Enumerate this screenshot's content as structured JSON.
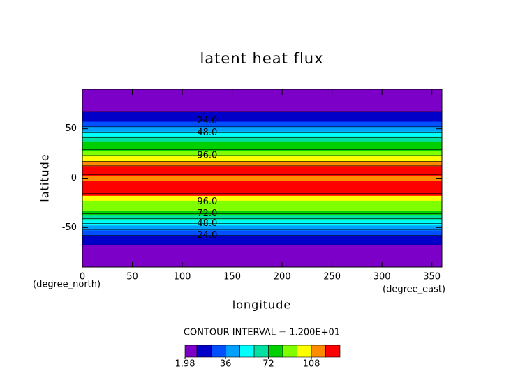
{
  "chart_data": {
    "type": "contour",
    "title": "latent heat flux",
    "x_label": "longitude",
    "y_label": "latitude",
    "x_units": "(degree_east)",
    "y_units": "(degree_north)",
    "xlim": [
      0,
      360
    ],
    "ylim": [
      -90,
      90
    ],
    "xticks": [
      0,
      50,
      100,
      150,
      200,
      250,
      300,
      350
    ],
    "yticks": [
      -50,
      0,
      50
    ],
    "y": [
      -90,
      -85,
      -80,
      -75,
      -70,
      -65,
      -60,
      -55,
      -50,
      -45,
      -40,
      -35,
      -30,
      -25,
      -20,
      -15,
      -10,
      -5,
      0,
      5,
      10,
      15,
      20,
      25,
      30,
      35,
      40,
      45,
      50,
      55,
      60,
      65,
      70,
      75,
      80,
      85,
      90
    ],
    "values": [
      5,
      5,
      6,
      8,
      10,
      14,
      20,
      30,
      40,
      50,
      62,
      74,
      84,
      94,
      104,
      122,
      126,
      124,
      115,
      122,
      128,
      112,
      102,
      92,
      82,
      72,
      62,
      50,
      40,
      30,
      20,
      14,
      10,
      8,
      6,
      5,
      5
    ],
    "levels": [
      12,
      24,
      36,
      48,
      60,
      72,
      84,
      96,
      108,
      120
    ],
    "colors": [
      "#7d00c8",
      "#0000c8",
      "#0050ff",
      "#00a0ff",
      "#00ffff",
      "#00e0a0",
      "#00d000",
      "#80ff00",
      "#ffff00",
      "#ff8c00",
      "#ff0000"
    ],
    "contour_labels": [
      {
        "value": 24,
        "label": "24.0"
      },
      {
        "value": 48,
        "label": "48.0"
      },
      {
        "value": 72,
        "label": "72.0"
      },
      {
        "value": 96,
        "label": "96.0"
      }
    ],
    "contour_interval_text": "CONTOUR INTERVAL = 1.200E+01",
    "colorbar": {
      "lim": [
        1.98,
        132
      ],
      "ticks": [
        1.98,
        36,
        72,
        108
      ]
    }
  }
}
